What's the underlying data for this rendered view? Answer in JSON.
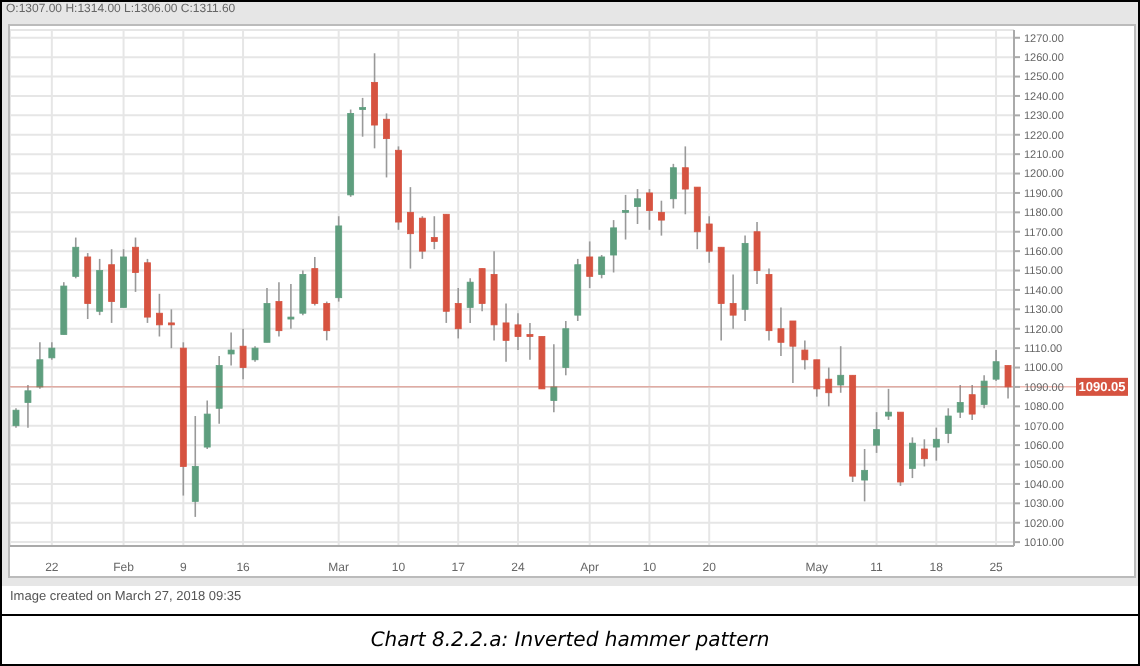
{
  "chart_data": {
    "type": "candlestick",
    "title": "Chart 8.2.2.a: Inverted hammer pattern",
    "annotations": [
      "O:1307.00 H:1314.00 L:1306.00 C:1311.60",
      "Image created on March 27, 2018 09:35"
    ],
    "categories": [
      null,
      null,
      null,
      "22",
      null,
      null,
      null,
      null,
      null,
      "Feb",
      null,
      null,
      null,
      null,
      "9",
      null,
      null,
      null,
      null,
      "16",
      null,
      null,
      null,
      null,
      null,
      null,
      null,
      "Mar",
      null,
      null,
      null,
      null,
      "10",
      null,
      null,
      null,
      null,
      "17",
      null,
      null,
      null,
      null,
      "24",
      null,
      null,
      null,
      null,
      null,
      "Apr",
      null,
      null,
      null,
      null,
      "10",
      null,
      null,
      null,
      null,
      "20",
      null,
      null,
      null,
      null,
      null,
      null,
      null,
      null,
      "May",
      null,
      null,
      null,
      null,
      "11",
      null,
      null,
      null,
      null,
      "18",
      null,
      null,
      null,
      null,
      "25",
      null
    ],
    "ohlc": [
      [
        1070,
        1079,
        1069,
        1078
      ],
      [
        1082,
        1091,
        1069,
        1088
      ],
      [
        1090,
        1113,
        1089,
        1104
      ],
      [
        1105,
        1113,
        1104,
        1110
      ],
      [
        1117,
        1144,
        1117,
        1142
      ],
      [
        1147,
        1167,
        1146,
        1162
      ],
      [
        1157,
        1159,
        1125,
        1133
      ],
      [
        1129,
        1156,
        1127,
        1150
      ],
      [
        1153,
        1161,
        1123,
        1134
      ],
      [
        1131,
        1161,
        1131,
        1157
      ],
      [
        1162,
        1167,
        1139,
        1149
      ],
      [
        1154,
        1156,
        1123,
        1126
      ],
      [
        1128,
        1138,
        1116,
        1122
      ],
      [
        1123,
        1130,
        1110,
        1122
      ],
      [
        1110,
        1113,
        1034,
        1049
      ],
      [
        1031,
        1075,
        1023,
        1049
      ],
      [
        1059,
        1083,
        1058,
        1076
      ],
      [
        1079,
        1106,
        1071,
        1101
      ],
      [
        1107,
        1118,
        1101,
        1109
      ],
      [
        1111,
        1120,
        1094,
        1100
      ],
      [
        1104,
        1111,
        1103,
        1110
      ],
      [
        1113,
        1141,
        1113,
        1133
      ],
      [
        1134,
        1144,
        1116,
        1119
      ],
      [
        1125,
        1143,
        1120,
        1126
      ],
      [
        1128,
        1150,
        1127,
        1148
      ],
      [
        1151,
        1157,
        1132,
        1133
      ],
      [
        1133,
        1134,
        1114,
        1119
      ],
      [
        1136,
        1178,
        1134,
        1173
      ],
      [
        1189,
        1233,
        1188,
        1231
      ],
      [
        1233,
        1239,
        1219,
        1234
      ],
      [
        1247,
        1262,
        1213,
        1225
      ],
      [
        1228,
        1231,
        1198,
        1218
      ],
      [
        1212,
        1214,
        1171,
        1175
      ],
      [
        1180,
        1193,
        1151,
        1169
      ],
      [
        1177,
        1178,
        1156,
        1160
      ],
      [
        1167,
        1178,
        1161,
        1165
      ],
      [
        1179,
        1179,
        1123,
        1129
      ],
      [
        1133,
        1141,
        1115,
        1120
      ],
      [
        1131,
        1146,
        1123,
        1144
      ],
      [
        1151,
        1151,
        1129,
        1133
      ],
      [
        1148,
        1160,
        1114,
        1122
      ],
      [
        1123,
        1133,
        1103,
        1114
      ],
      [
        1122,
        1128,
        1109,
        1116
      ],
      [
        1117,
        1123,
        1104,
        1116
      ],
      [
        1116,
        1116,
        1089,
        1089
      ],
      [
        1083,
        1112,
        1077,
        1090
      ],
      [
        1100,
        1124,
        1096,
        1120
      ],
      [
        1127,
        1156,
        1124,
        1153
      ],
      [
        1157,
        1165,
        1141,
        1147
      ],
      [
        1148,
        1158,
        1146,
        1157
      ],
      [
        1158,
        1176,
        1149,
        1172
      ],
      [
        1180,
        1189,
        1166,
        1181
      ],
      [
        1183,
        1192,
        1174,
        1187
      ],
      [
        1190,
        1192,
        1171,
        1181
      ],
      [
        1180,
        1186,
        1168,
        1176
      ],
      [
        1187,
        1205,
        1182,
        1203
      ],
      [
        1203,
        1214,
        1179,
        1192
      ],
      [
        1193,
        1193,
        1161,
        1170
      ],
      [
        1174,
        1178,
        1154,
        1160
      ],
      [
        1162,
        1162,
        1114,
        1133
      ],
      [
        1133,
        1148,
        1120,
        1127
      ],
      [
        1130,
        1168,
        1124,
        1164
      ],
      [
        1170,
        1175,
        1143,
        1150
      ],
      [
        1148,
        1151,
        1114,
        1119
      ],
      [
        1120,
        1131,
        1106,
        1113
      ],
      [
        1124,
        1124,
        1092,
        1111
      ],
      [
        1109,
        1114,
        1099,
        1104
      ],
      [
        1104,
        1104,
        1085,
        1089
      ],
      [
        1094,
        1100,
        1080,
        1087
      ],
      [
        1091,
        1111,
        1087,
        1096
      ],
      [
        1096,
        1096,
        1041,
        1044
      ],
      [
        1042,
        1058,
        1031,
        1047
      ],
      [
        1060,
        1077,
        1056,
        1068
      ],
      [
        1075,
        1089,
        1073,
        1077
      ],
      [
        1077,
        1077,
        1039,
        1041
      ],
      [
        1048,
        1064,
        1043,
        1061
      ],
      [
        1058,
        1063,
        1049,
        1053
      ],
      [
        1059,
        1069,
        1052,
        1063
      ],
      [
        1066,
        1079,
        1061,
        1075
      ],
      [
        1077,
        1091,
        1074,
        1082
      ],
      [
        1086,
        1091,
        1073,
        1076
      ],
      [
        1081,
        1096,
        1079,
        1093
      ],
      [
        1094,
        1109,
        1093,
        1103
      ],
      [
        1101,
        1101,
        1084,
        1090.05
      ]
    ],
    "colors": [
      "#5e9e7e",
      "#5e9e7e",
      "#5e9e7e",
      "#5e9e7e",
      "#5e9e7e",
      "#5e9e7e",
      "#d65340",
      "#5e9e7e",
      "#d65340",
      "#5e9e7e",
      "#d65340",
      "#d65340",
      "#d65340",
      "#d65340",
      "#d65340",
      "#5e9e7e",
      "#5e9e7e",
      "#5e9e7e",
      "#5e9e7e",
      "#d65340",
      "#5e9e7e",
      "#5e9e7e",
      "#d65340",
      "#5e9e7e",
      "#5e9e7e",
      "#d65340",
      "#d65340",
      "#5e9e7e",
      "#5e9e7e",
      "#5e9e7e",
      "#d65340",
      "#d65340",
      "#d65340",
      "#d65340",
      "#d65340",
      "#d65340",
      "#d65340",
      "#d65340",
      "#5e9e7e",
      "#d65340",
      "#d65340",
      "#d65340",
      "#d65340",
      "#d65340",
      "#d65340",
      "#5e9e7e",
      "#5e9e7e",
      "#5e9e7e",
      "#d65340",
      "#5e9e7e",
      "#5e9e7e",
      "#5e9e7e",
      "#5e9e7e",
      "#d65340",
      "#d65340",
      "#5e9e7e",
      "#d65340",
      "#d65340",
      "#d65340",
      "#d65340",
      "#d65340",
      "#5e9e7e",
      "#d65340",
      "#d65340",
      "#d65340",
      "#d65340",
      "#d65340",
      "#d65340",
      "#d65340",
      "#5e9e7e",
      "#d65340",
      "#5e9e7e",
      "#5e9e7e",
      "#5e9e7e",
      "#d65340",
      "#5e9e7e",
      "#d65340",
      "#5e9e7e",
      "#5e9e7e",
      "#5e9e7e",
      "#d65340",
      "#5e9e7e",
      "#5e9e7e",
      "#d65340"
    ],
    "ylim": [
      1008,
      1274
    ],
    "yticks": [
      {
        "value": 1010,
        "label": "1010.00"
      },
      {
        "value": 1020,
        "label": "1020.00"
      },
      {
        "value": 1030,
        "label": "1030.00"
      },
      {
        "value": 1040,
        "label": "1040.00"
      },
      {
        "value": 1050,
        "label": "1050.00"
      },
      {
        "value": 1060,
        "label": "1060.00"
      },
      {
        "value": 1070,
        "label": "1070.00"
      },
      {
        "value": 1080,
        "label": "1080.00"
      },
      {
        "value": 1090,
        "label": "1090.00"
      },
      {
        "value": 1100,
        "label": "1100.00"
      },
      {
        "value": 1110,
        "label": "1110.00"
      },
      {
        "value": 1120,
        "label": "1120.00"
      },
      {
        "value": 1130,
        "label": "1130.00"
      },
      {
        "value": 1140,
        "label": "1140.00"
      },
      {
        "value": 1150,
        "label": "1150.00"
      },
      {
        "value": 1160,
        "label": "1160.00"
      },
      {
        "value": 1170,
        "label": "1170.00"
      },
      {
        "value": 1180,
        "label": "1180.00"
      },
      {
        "value": 1190,
        "label": "1190.00"
      },
      {
        "value": 1200,
        "label": "1200.00"
      },
      {
        "value": 1210,
        "label": "1210.00"
      },
      {
        "value": 1220,
        "label": "1220.00"
      },
      {
        "value": 1230,
        "label": "1230.00"
      },
      {
        "value": 1240,
        "label": "1240.00"
      },
      {
        "value": 1250,
        "label": "1250.00"
      },
      {
        "value": 1260,
        "label": "1260.00"
      },
      {
        "value": 1270,
        "label": "1270.00"
      }
    ],
    "ref_lines": [
      {
        "axis": "y",
        "value": 1090.05,
        "label": "1090.05",
        "color": "#d65340"
      }
    ],
    "grid": true
  }
}
